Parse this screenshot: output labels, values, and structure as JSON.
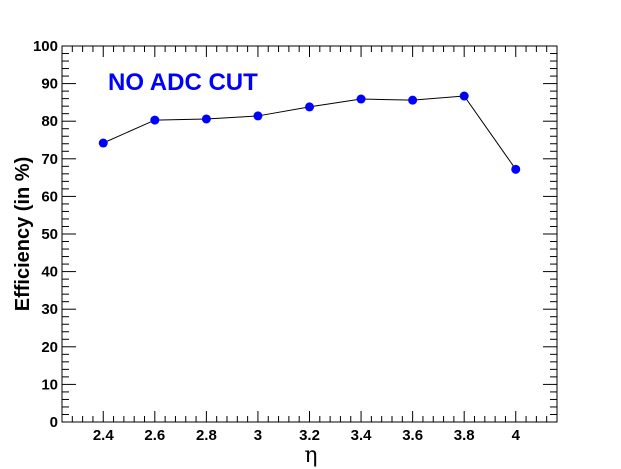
{
  "chart_data": {
    "type": "line",
    "title": "",
    "xlabel": "η",
    "ylabel": "Efficiency (in %)",
    "xlim": [
      2.24,
      4.16
    ],
    "ylim": [
      0,
      100
    ],
    "x_ticks": [
      "2.4",
      "2.6",
      "2.8",
      "3",
      "3.2",
      "3.4",
      "3.6",
      "3.8",
      "4"
    ],
    "y_ticks": [
      "0",
      "10",
      "20",
      "30",
      "40",
      "50",
      "60",
      "70",
      "80",
      "90",
      "100"
    ],
    "grid": false,
    "annotation": "NO ADC CUT",
    "series": [
      {
        "x": [
          2.4,
          2.6,
          2.8,
          3.0,
          3.2,
          3.4,
          3.6,
          3.8,
          4.0
        ],
        "y": [
          74.2,
          80.3,
          80.6,
          81.4,
          83.8,
          85.9,
          85.6,
          86.7,
          67.2
        ]
      }
    ],
    "colors": {
      "marker": "#0000ff",
      "line": "#000000",
      "annotation": "#0000ff"
    }
  }
}
